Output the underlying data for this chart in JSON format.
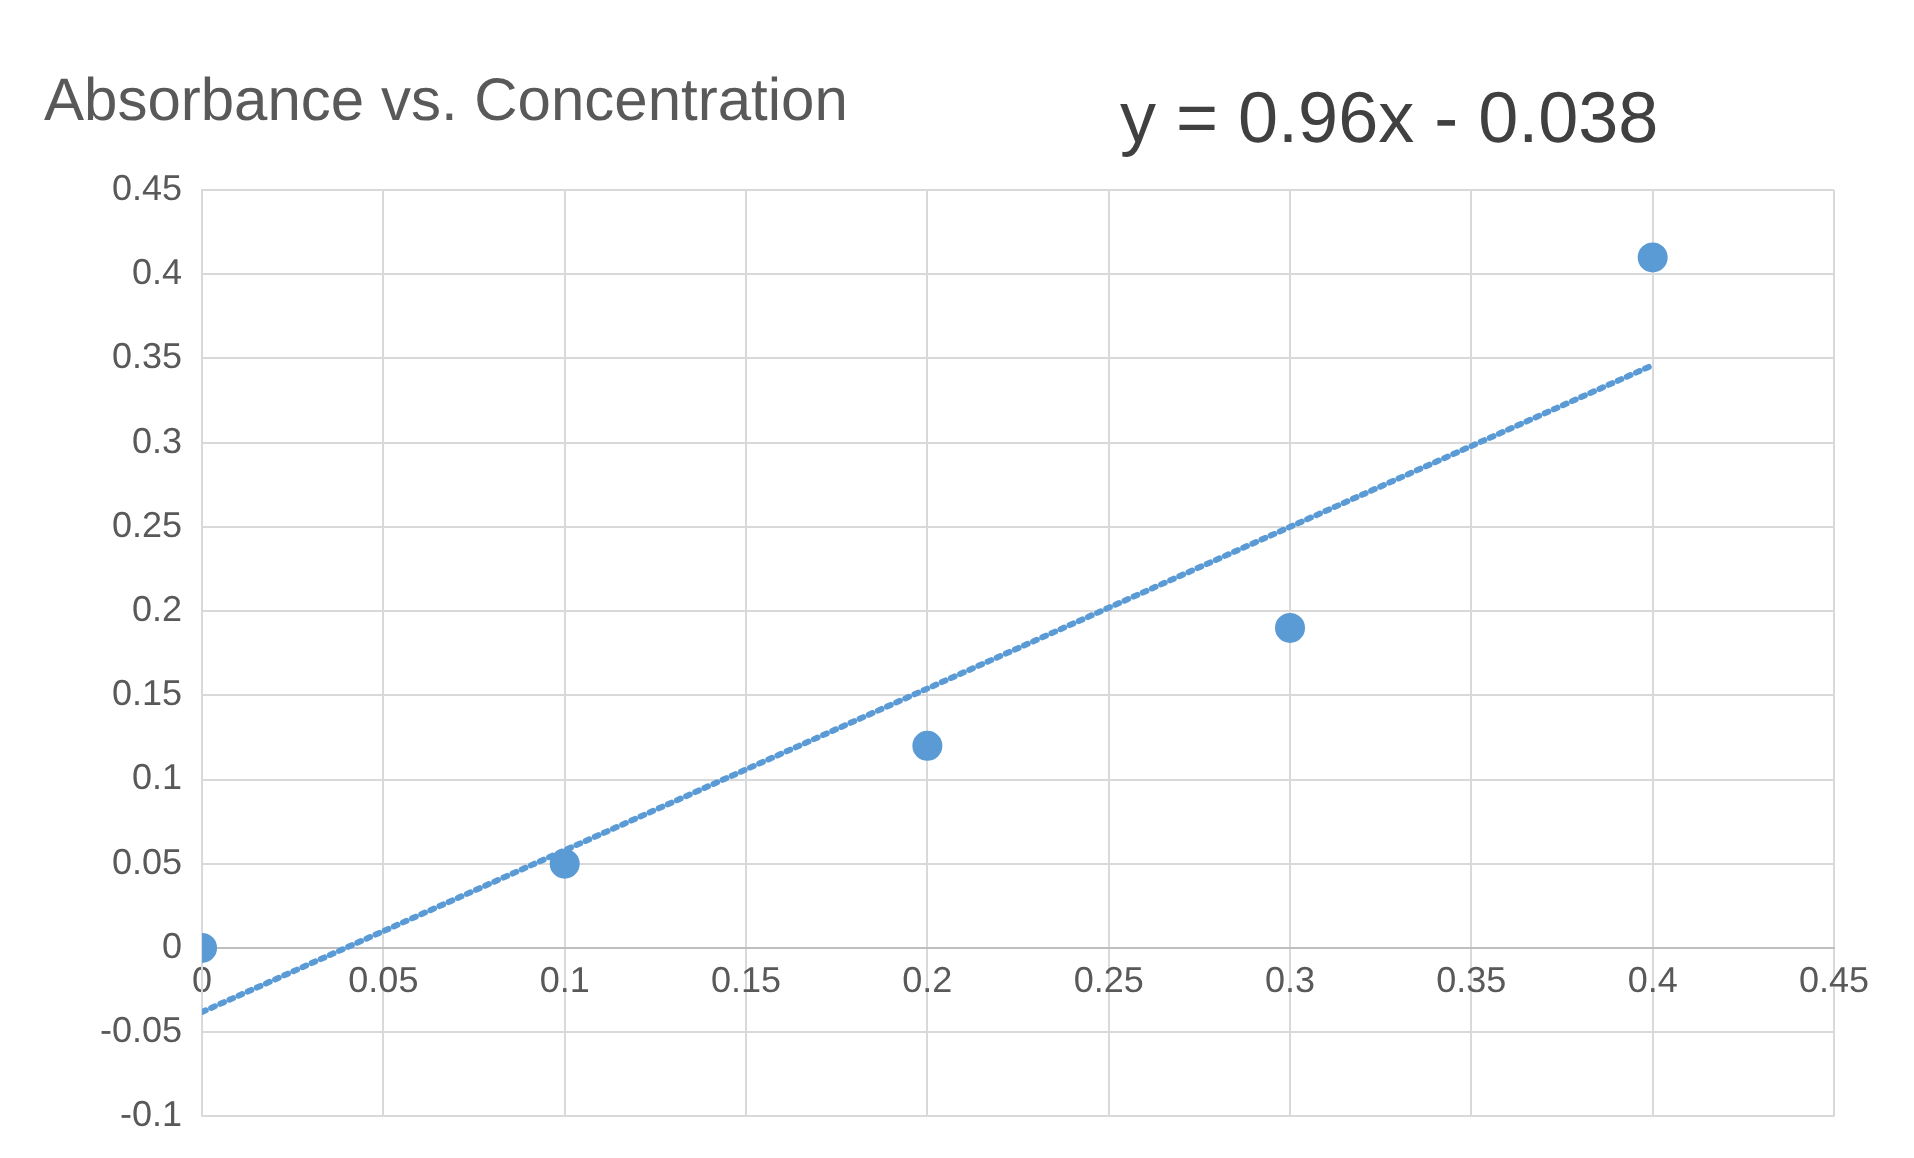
{
  "chart_data": {
    "type": "scatter",
    "title": "Absorbance vs. Concentration",
    "annotations": [
      "y = 0.96x - 0.038"
    ],
    "series": [
      {
        "type": "scatter",
        "color": "#5b9bd5",
        "x": [
          0,
          0.1,
          0.2,
          0.3,
          0.4
        ],
        "values": [
          0,
          0.05,
          0.12,
          0.19,
          0.41
        ]
      },
      {
        "type": "line",
        "color": "#5b9bd5",
        "line_style": "dotted",
        "marker": "none",
        "x": [
          0,
          0.4
        ],
        "values": [
          -0.038,
          0.346
        ]
      }
    ],
    "xlim": [
      0,
      0.45
    ],
    "xticks": [
      0,
      0.05,
      0.1,
      0.15,
      0.2,
      0.25,
      0.3,
      0.35,
      0.4,
      0.45
    ],
    "ylim": [
      -0.1,
      0.45
    ],
    "yticks": [
      -0.1,
      -0.05,
      0,
      0.05,
      0.1,
      0.15,
      0.2,
      0.25,
      0.3,
      0.35,
      0.4,
      0.45
    ],
    "grid": true,
    "legend": false,
    "marker": "circle"
  }
}
